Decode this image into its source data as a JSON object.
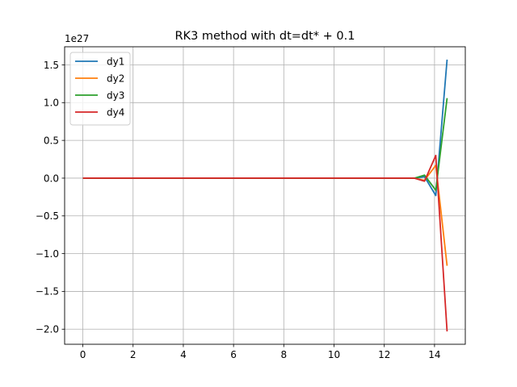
{
  "chart_data": {
    "type": "line",
    "title": "RK3 method with dt=dt* + 0.1",
    "xlabel": "",
    "ylabel": "",
    "y_offset_label": "1e27",
    "xlim": [
      -0.725,
      15.225
    ],
    "ylim": [
      -2.2,
      1.74
    ],
    "x_ticks": [
      0,
      2,
      4,
      6,
      8,
      10,
      12,
      14
    ],
    "x_tick_labels": [
      "0",
      "2",
      "4",
      "6",
      "8",
      "10",
      "12",
      "14"
    ],
    "y_ticks": [
      -2.0,
      -1.5,
      -1.0,
      -0.5,
      0.0,
      0.5,
      1.0,
      1.5
    ],
    "y_tick_labels": [
      "−2.0",
      "−1.5",
      "−1.0",
      "−0.5",
      "0.0",
      "0.5",
      "1.0",
      "1.5"
    ],
    "grid": true,
    "legend_position": "top-left",
    "series": [
      {
        "name": "dy1",
        "color": "#1f77b4",
        "x": [
          0,
          13.2,
          13.6,
          14.05,
          14.5
        ],
        "y": [
          0,
          0,
          0.02,
          -0.23,
          1.57
        ]
      },
      {
        "name": "dy2",
        "color": "#ff7f0e",
        "x": [
          0,
          13.2,
          13.6,
          14.05,
          14.5
        ],
        "y": [
          0,
          0,
          -0.03,
          0.17,
          -1.16
        ]
      },
      {
        "name": "dy3",
        "color": "#2ca02c",
        "x": [
          0,
          13.2,
          13.6,
          14.05,
          14.5
        ],
        "y": [
          0,
          0,
          0.04,
          -0.16,
          1.06
        ]
      },
      {
        "name": "dy4",
        "color": "#d62728",
        "x": [
          0,
          13.2,
          13.6,
          14.05,
          14.5
        ],
        "y": [
          0,
          0,
          -0.04,
          0.3,
          -2.03
        ]
      }
    ]
  }
}
